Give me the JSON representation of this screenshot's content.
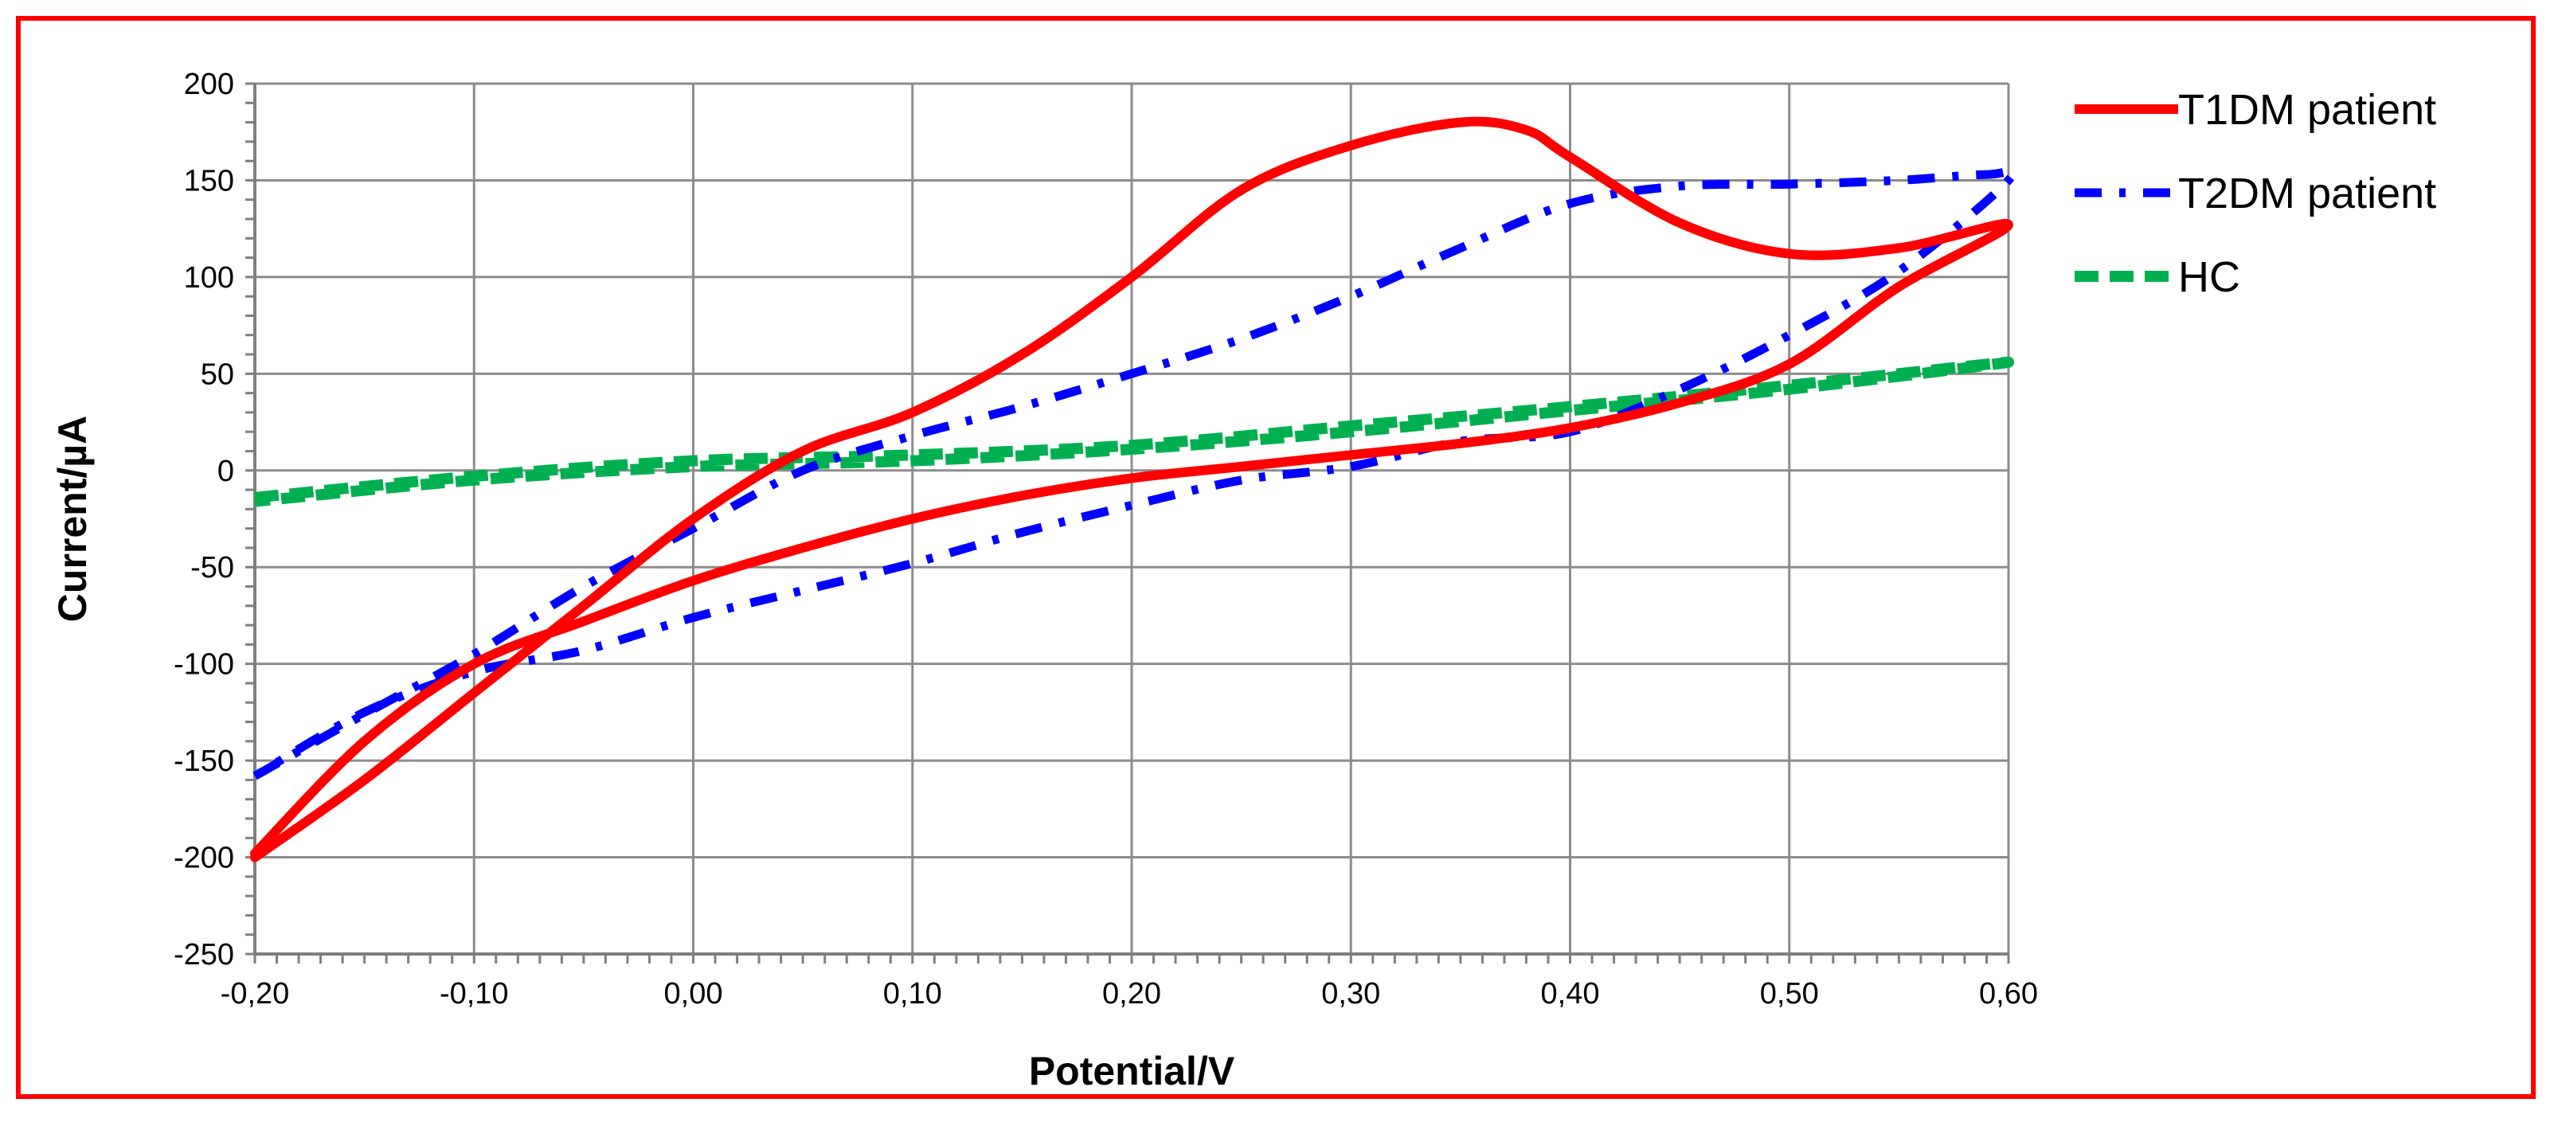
{
  "chart_data": {
    "type": "line",
    "title": "",
    "xlabel": "Potential/V",
    "ylabel": "Current/µA",
    "xlim": [
      -0.2,
      0.6
    ],
    "ylim": [
      -250,
      200
    ],
    "x_ticks": [
      -0.2,
      -0.1,
      0.0,
      0.1,
      0.2,
      0.3,
      0.4,
      0.5,
      0.6
    ],
    "x_tick_labels": [
      "-0,20",
      "-0,10",
      "0,00",
      "0,10",
      "0,20",
      "0,30",
      "0,40",
      "0,50",
      "0,60"
    ],
    "y_ticks": [
      200,
      150,
      100,
      50,
      0,
      -50,
      -100,
      -150,
      -200,
      -250
    ],
    "y_tick_labels": [
      "200",
      "150",
      "100",
      "50",
      "0",
      "-50",
      "-100",
      "-150",
      "-200",
      "-250"
    ],
    "grid": true,
    "legend_position": "right",
    "series": [
      {
        "name": "T1DM patient",
        "color": "#ff0000",
        "style": "solid",
        "x": [
          -0.2,
          -0.15,
          -0.1,
          -0.05,
          0.0,
          0.05,
          0.1,
          0.15,
          0.2,
          0.25,
          0.3,
          0.35,
          0.38,
          0.4,
          0.45,
          0.5,
          0.55,
          0.6,
          0.55,
          0.5,
          0.45,
          0.4,
          0.35,
          0.3,
          0.25,
          0.2,
          0.15,
          0.1,
          0.05,
          0.0,
          -0.05,
          -0.1,
          -0.15,
          -0.2
        ],
        "y": [
          -200,
          -160,
          -115,
          -70,
          -25,
          10,
          30,
          60,
          100,
          145,
          168,
          180,
          176,
          162,
          128,
          112,
          115,
          127,
          95,
          55,
          35,
          22,
          14,
          8,
          2,
          -4,
          -13,
          -25,
          -40,
          -57,
          -78,
          -100,
          -140,
          -198
        ]
      },
      {
        "name": "T2DM patient",
        "color": "#0000ff",
        "style": "dashdot",
        "x": [
          -0.2,
          -0.15,
          -0.1,
          -0.05,
          0.0,
          0.05,
          0.1,
          0.15,
          0.2,
          0.25,
          0.3,
          0.35,
          0.4,
          0.45,
          0.5,
          0.55,
          0.59,
          0.6,
          0.55,
          0.5,
          0.45,
          0.4,
          0.35,
          0.3,
          0.25,
          0.2,
          0.15,
          0.1,
          0.05,
          0.0,
          -0.05,
          -0.1,
          -0.15,
          -0.2
        ],
        "y": [
          -158,
          -126,
          -95,
          -60,
          -30,
          0,
          18,
          33,
          50,
          68,
          90,
          115,
          138,
          147,
          148,
          150,
          153,
          150,
          103,
          70,
          42,
          20,
          15,
          2,
          -5,
          -18,
          -32,
          -48,
          -62,
          -76,
          -93,
          -104,
          -125,
          -158
        ]
      },
      {
        "name": "HC",
        "color": "#00b050",
        "style": "dashed",
        "x": [
          -0.2,
          -0.1,
          0.0,
          0.1,
          0.2,
          0.3,
          0.4,
          0.5,
          0.6,
          0.5,
          0.4,
          0.3,
          0.2,
          0.1,
          0.0,
          -0.1,
          -0.2
        ],
        "y": [
          -14,
          -3,
          5,
          8,
          13,
          23,
          33,
          44,
          56,
          42,
          31,
          20,
          11,
          5,
          2,
          -5,
          -16
        ]
      }
    ]
  }
}
